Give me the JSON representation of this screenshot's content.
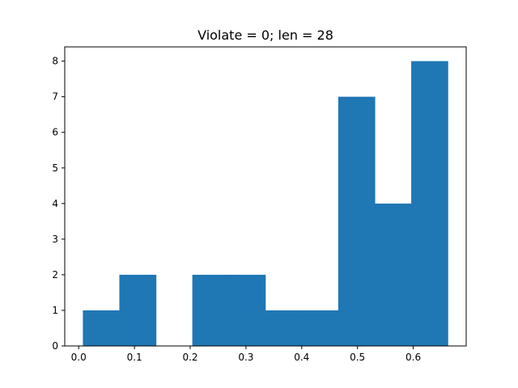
{
  "chart_data": {
    "type": "bar",
    "title": "Violate = 0; len = 28",
    "xlabel": "",
    "ylabel": "",
    "bin_edges": [
      0.0075,
      0.0729,
      0.1384,
      0.2038,
      0.2692,
      0.3346,
      0.4001,
      0.4655,
      0.5309,
      0.5964,
      0.6618
    ],
    "values": [
      1,
      2,
      0,
      2,
      2,
      1,
      1,
      7,
      4,
      8
    ],
    "xlim": [
      -0.025,
      0.695
    ],
    "ylim": [
      0,
      8.4
    ],
    "xticks": [
      0.0,
      0.1,
      0.2,
      0.3,
      0.4,
      0.5,
      0.6
    ],
    "xtick_labels": [
      "0.0",
      "0.1",
      "0.2",
      "0.3",
      "0.4",
      "0.5",
      "0.6"
    ],
    "yticks": [
      0,
      1,
      2,
      3,
      4,
      5,
      6,
      7,
      8
    ],
    "ytick_labels": [
      "0",
      "1",
      "2",
      "3",
      "4",
      "5",
      "6",
      "7",
      "8"
    ],
    "bar_color": "#1f77b4",
    "grid": false,
    "legend": "none"
  }
}
